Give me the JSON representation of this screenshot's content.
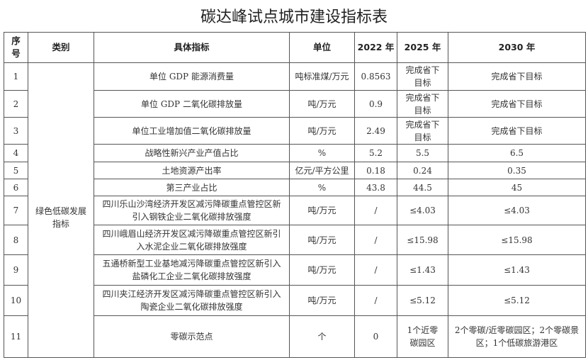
{
  "title": "碳达峰试点城市建设指标表",
  "headers": [
    "序号",
    "类别",
    "具体指标",
    "单位",
    "2022 年",
    "2025 年",
    "2030 年"
  ],
  "category": "绿色低碳发展指标",
  "rows": [
    {
      "no": "1",
      "indicator": "单位 GDP 能源消费量",
      "unit": "吨标准煤/万元",
      "y2022": "0.8563",
      "y2025": "完成省下目标",
      "y2030": "完成省下目标"
    },
    {
      "no": "2",
      "indicator": "单位 GDP 二氧化碳排放量",
      "unit": "吨/万元",
      "y2022": "0.9",
      "y2025": "完成省下目标",
      "y2030": "完成省下目标"
    },
    {
      "no": "3",
      "indicator": "单位工业增加值二氧化碳排放量",
      "unit": "吨/万元",
      "y2022": "2.49",
      "y2025": "完成省下目标",
      "y2030": "完成省下目标"
    },
    {
      "no": "4",
      "indicator": "战略性新兴产业产值占比",
      "unit": "%",
      "y2022": "5.2",
      "y2025": "5.5",
      "y2030": "6.5"
    },
    {
      "no": "5",
      "indicator": "土地资源产出率",
      "unit": "亿元/平方公里",
      "y2022": "0.18",
      "y2025": "0.24",
      "y2030": "0.35"
    },
    {
      "no": "6",
      "indicator": "第三产业占比",
      "unit": "%",
      "y2022": "43.8",
      "y2025": "44.5",
      "y2030": "45"
    },
    {
      "no": "7",
      "indicator": "四川乐山沙湾经济开发区减污降碳重点管控区新引入钢铁企业二氧化碳排放强度",
      "unit": "吨/万元",
      "y2022": "/",
      "y2025": "≤4.03",
      "y2030": "≤4.03"
    },
    {
      "no": "8",
      "indicator": "四川峨眉山经济开发区减污降碳重点管控区新引入水泥企业二氧化碳排放强度",
      "unit": "吨/万元",
      "y2022": "/",
      "y2025": "≤15.98",
      "y2030": "≤15.98"
    },
    {
      "no": "9",
      "indicator": "五通桥新型工业基地减污降碳重点管控区新引入盐磷化工企业二氧化碳排放强度",
      "unit": "吨/万元",
      "y2022": "/",
      "y2025": "≤1.43",
      "y2030": "≤1.43"
    },
    {
      "no": "10",
      "indicator": "四川夹江经济开发区减污降碳重点管控区新引入陶瓷企业二氧化碳排放强度",
      "unit": "吨/万元",
      "y2022": "/",
      "y2025": "≤5.12",
      "y2030": "≤5.12"
    },
    {
      "no": "11",
      "indicator": "零碳示范点",
      "unit": "个",
      "y2022": "0",
      "y2025": "1个近零碳园区",
      "y2030": "2个零碳/近零碳园区；2个零碳景区；1个低碳旅游港区"
    }
  ]
}
